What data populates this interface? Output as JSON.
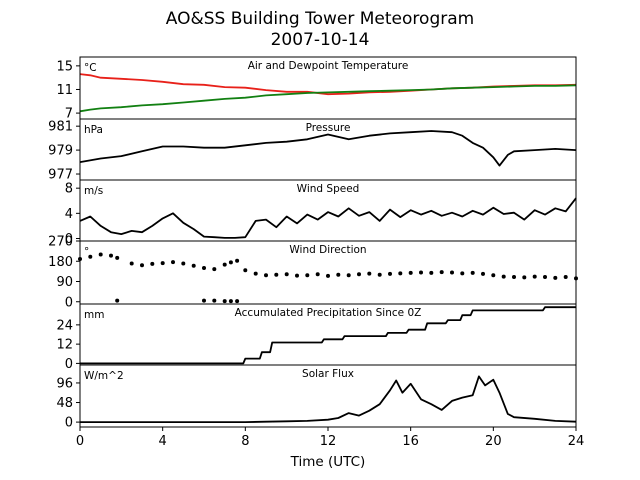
{
  "figure": {
    "title": "AO&SS Building Tower Meteorogram",
    "subtitle": "2007-10-14",
    "xlabel": "Time (UTC)"
  },
  "chart_data": [
    {
      "type": "line",
      "title": "Air and Dewpoint Temperature",
      "ylabel": "°C",
      "xlim": [
        0,
        24
      ],
      "ylim": [
        6,
        16.5
      ],
      "yticks": [
        7,
        11,
        15
      ],
      "x": [
        0,
        0.5,
        1,
        2,
        3,
        4,
        5,
        6,
        7,
        8,
        9,
        10,
        11,
        12,
        13,
        14,
        15,
        16,
        17,
        18,
        19,
        20,
        21,
        22,
        23,
        24
      ],
      "series": [
        {
          "color": "#e8211a",
          "values": [
            13.6,
            13.4,
            13.0,
            12.8,
            12.6,
            12.3,
            11.9,
            11.8,
            11.4,
            11.3,
            10.9,
            10.6,
            10.6,
            10.2,
            10.3,
            10.5,
            10.6,
            10.8,
            11.0,
            11.2,
            11.3,
            11.5,
            11.6,
            11.7,
            11.7,
            11.8
          ]
        },
        {
          "color": "#128012",
          "values": [
            7.3,
            7.6,
            7.8,
            8.0,
            8.3,
            8.5,
            8.8,
            9.1,
            9.4,
            9.6,
            10.0,
            10.2,
            10.4,
            10.5,
            10.6,
            10.7,
            10.8,
            10.9,
            11.0,
            11.2,
            11.3,
            11.4,
            11.5,
            11.6,
            11.6,
            11.7
          ]
        }
      ]
    },
    {
      "type": "line",
      "title": "Pressure",
      "ylabel": "hPa",
      "xlim": [
        0,
        24
      ],
      "ylim": [
        976.5,
        981.6
      ],
      "yticks": [
        977,
        979,
        981
      ],
      "x": [
        0,
        1,
        2,
        3,
        4,
        5,
        6,
        7,
        8,
        9,
        10,
        11,
        12,
        13,
        14,
        15,
        16,
        17,
        18,
        18.5,
        19,
        19.5,
        20,
        20.3,
        20.7,
        21,
        22,
        23,
        24
      ],
      "series": [
        {
          "color": "#000000",
          "values": [
            978.0,
            978.3,
            978.5,
            978.9,
            979.3,
            979.3,
            979.2,
            979.2,
            979.4,
            979.6,
            979.7,
            979.9,
            980.3,
            979.9,
            980.2,
            980.4,
            980.5,
            980.6,
            980.5,
            980.2,
            979.6,
            979.2,
            978.4,
            977.7,
            978.6,
            978.9,
            979.0,
            979.1,
            979.0
          ]
        }
      ]
    },
    {
      "type": "line",
      "title": "Wind Speed",
      "ylabel": "m/s",
      "xlim": [
        0,
        24
      ],
      "ylim": [
        -0.4,
        9.3
      ],
      "yticks": [
        0,
        4,
        8
      ],
      "x": [
        0,
        0.5,
        1,
        1.5,
        2,
        2.5,
        3,
        3.5,
        4,
        4.5,
        5,
        5.5,
        6,
        6.5,
        7,
        7.5,
        8,
        8.5,
        9,
        9.5,
        10,
        10.5,
        11,
        11.5,
        12,
        12.5,
        13,
        13.5,
        14,
        14.5,
        15,
        15.5,
        16,
        16.5,
        17,
        17.5,
        18,
        18.5,
        19,
        19.5,
        20,
        20.5,
        21,
        21.5,
        22,
        22.5,
        23,
        23.5,
        24
      ],
      "series": [
        {
          "color": "#000000",
          "values": [
            2.8,
            3.5,
            2.0,
            1.0,
            0.7,
            1.2,
            1.0,
            2.0,
            3.2,
            4.0,
            2.5,
            1.5,
            0.3,
            0.2,
            0.1,
            0.1,
            0.2,
            2.8,
            3.0,
            1.8,
            3.5,
            2.4,
            3.8,
            3.0,
            4.2,
            3.5,
            4.8,
            3.6,
            4.2,
            2.8,
            4.6,
            3.4,
            4.5,
            3.8,
            4.4,
            3.6,
            4.1,
            3.5,
            4.4,
            3.8,
            4.9,
            3.9,
            4.1,
            3.0,
            4.5,
            3.8,
            4.8,
            4.3,
            6.4
          ]
        }
      ]
    },
    {
      "type": "scatter",
      "title": "Wind Direction",
      "ylabel": "°",
      "xlim": [
        0,
        24
      ],
      "ylim": [
        -10,
        270
      ],
      "yticks": [
        0,
        90,
        180,
        270
      ],
      "x": [
        0,
        0.5,
        1,
        1.5,
        1.8,
        2.5,
        3,
        3.5,
        4,
        4.5,
        5,
        5.5,
        6,
        6.5,
        7,
        7.3,
        7.6,
        8,
        8.5,
        9,
        9.5,
        10,
        10.5,
        11,
        11.5,
        12,
        12.5,
        13,
        13.5,
        14,
        14.5,
        15,
        15.5,
        16,
        16.5,
        17,
        17.5,
        18,
        18.5,
        19,
        19.5,
        20,
        20.5,
        21,
        21.5,
        22,
        22.5,
        23,
        23.5,
        24
      ],
      "series": [
        {
          "color": "#000000",
          "values": [
            190,
            200,
            210,
            205,
            195,
            170,
            162,
            168,
            172,
            176,
            170,
            160,
            150,
            145,
            165,
            175,
            182,
            140,
            125,
            118,
            120,
            122,
            116,
            118,
            122,
            115,
            120,
            118,
            122,
            125,
            120,
            124,
            126,
            128,
            130,
            128,
            132,
            130,
            126,
            128,
            124,
            118,
            112,
            110,
            108,
            112,
            110,
            106,
            110,
            104
          ]
        },
        {
          "color": "#000000",
          "values": [
            null,
            null,
            null,
            null,
            5,
            null,
            null,
            null,
            null,
            null,
            null,
            null,
            5,
            5,
            3,
            3,
            3,
            null,
            null,
            null,
            null,
            null,
            null,
            null,
            null,
            null,
            null,
            null,
            null,
            null,
            null,
            null,
            null,
            null,
            null,
            null,
            null,
            null,
            null,
            null,
            null,
            null,
            null,
            null,
            null,
            null,
            null,
            null,
            null,
            null
          ]
        }
      ]
    },
    {
      "type": "line",
      "title": "Accumulated Precipitation Since 0Z",
      "ylabel": "mm",
      "xlim": [
        0,
        24
      ],
      "ylim": [
        -1,
        37
      ],
      "yticks": [
        0,
        12,
        24
      ],
      "x": [
        0,
        7.9,
        8.0,
        8.7,
        8.8,
        9.2,
        9.3,
        11.7,
        11.8,
        12.7,
        12.8,
        14.8,
        14.9,
        15.8,
        15.9,
        16.7,
        16.8,
        17.7,
        17.8,
        18.4,
        18.5,
        18.9,
        19.0,
        22.4,
        22.5,
        24
      ],
      "series": [
        {
          "color": "#000000",
          "values": [
            0,
            0,
            3,
            3,
            7,
            7,
            13,
            13,
            15,
            15,
            17,
            17,
            19,
            19,
            21,
            21,
            25,
            25,
            27,
            27,
            30,
            30,
            33,
            33,
            35,
            35
          ]
        }
      ]
    },
    {
      "type": "line",
      "title": "Solar Flux",
      "ylabel": "W/m^2",
      "xlim": [
        0,
        24
      ],
      "ylim": [
        -12,
        140
      ],
      "yticks": [
        0,
        48,
        96
      ],
      "x": [
        0,
        7,
        8,
        9,
        10,
        11,
        12,
        12.5,
        13,
        13.5,
        14,
        14.5,
        15,
        15.3,
        15.6,
        16,
        16.5,
        17,
        17.5,
        18,
        18.5,
        19,
        19.3,
        19.6,
        20,
        20.3,
        20.7,
        21,
        22,
        23,
        24
      ],
      "series": [
        {
          "color": "#000000",
          "values": [
            0,
            0,
            0,
            1,
            2,
            3,
            6,
            10,
            22,
            16,
            28,
            44,
            78,
            102,
            72,
            94,
            56,
            44,
            30,
            52,
            60,
            66,
            112,
            90,
            104,
            72,
            20,
            12,
            8,
            3,
            1
          ]
        }
      ]
    }
  ],
  "xaxis": {
    "ticks": [
      0,
      4,
      8,
      12,
      16,
      20,
      24
    ]
  }
}
